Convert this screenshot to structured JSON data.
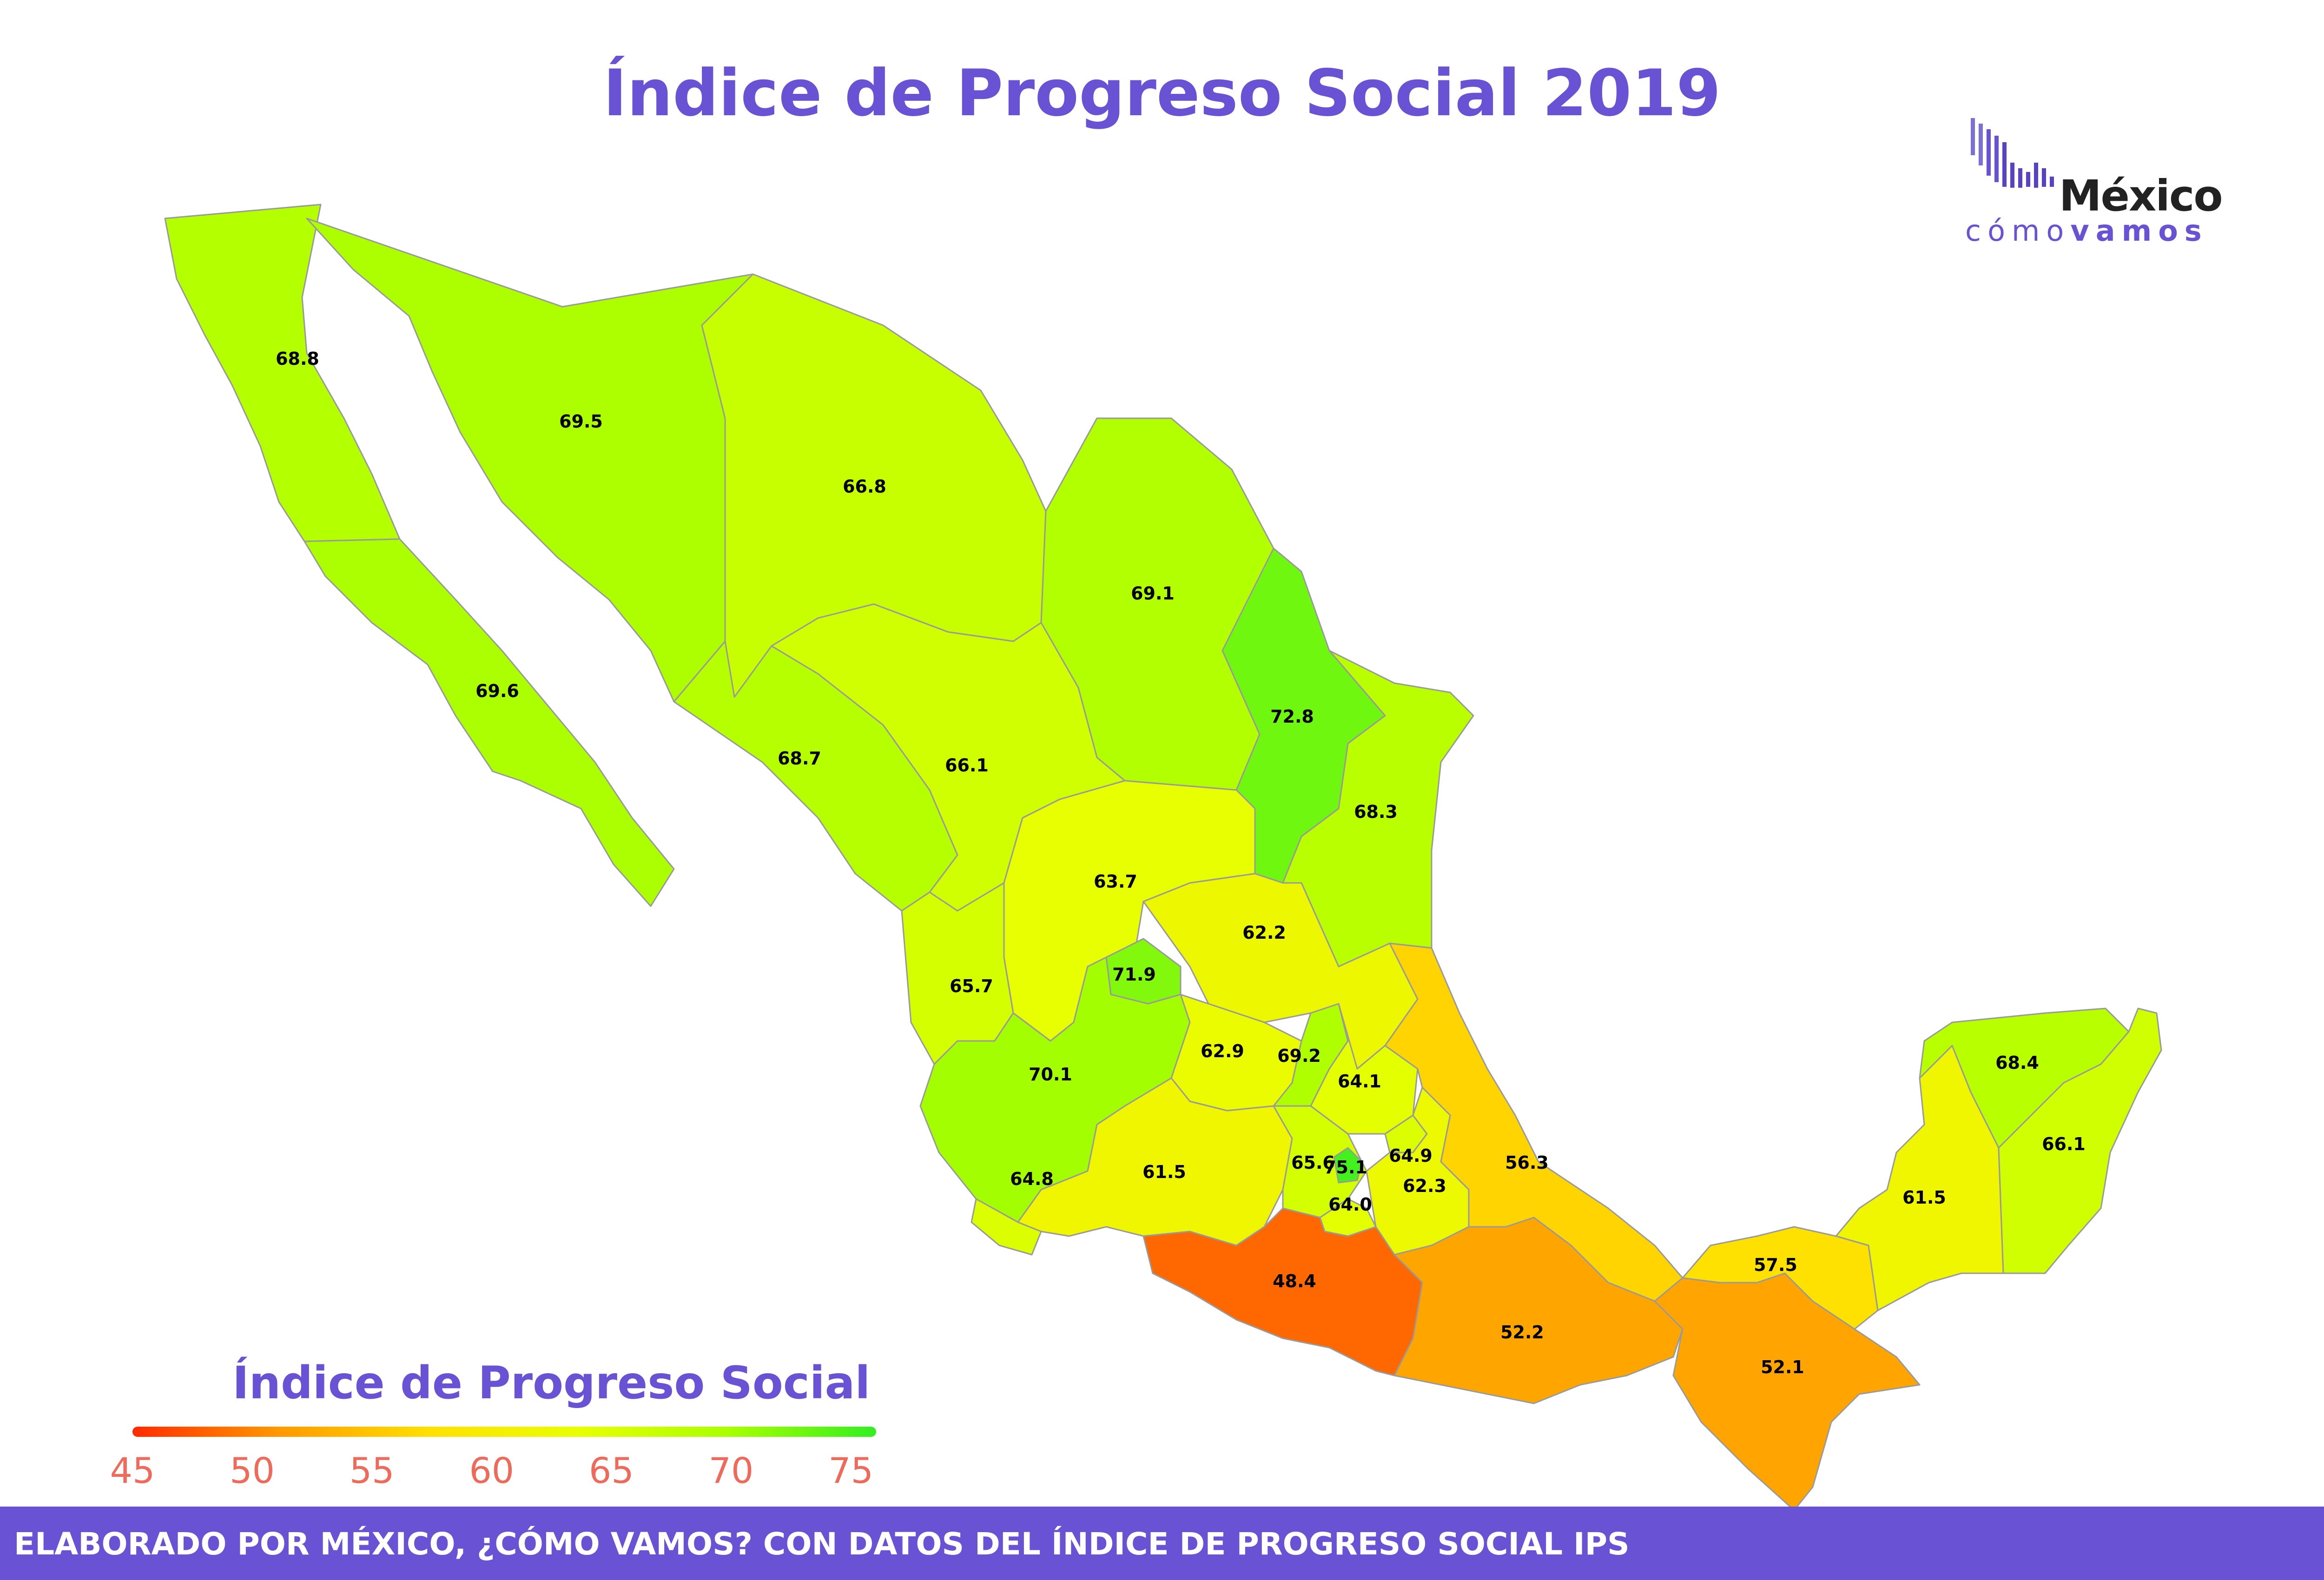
{
  "title": "Índice de Progreso Social 2019",
  "logo": {
    "word1": "México",
    "word2_light": "cómo",
    "word2_bold": "vamos"
  },
  "legend": {
    "title": "Índice de Progreso Social",
    "ticks": [
      "45",
      "50",
      "55",
      "60",
      "65",
      "70",
      "75"
    ],
    "min": 45,
    "max": 76,
    "colors": [
      "#ff2a00",
      "#ff9a00",
      "#ffe000",
      "#e8ff00",
      "#aaff00",
      "#33ee22"
    ]
  },
  "footer": "ELABORADO POR MÉXICO, ¿CÓMO VAMOS? CON DATOS DEL ÍNDICE DE PROGRESO SOCIAL IPS",
  "states": [
    {
      "id": "baja-california",
      "value": "68.8"
    },
    {
      "id": "sonora",
      "value": "69.5"
    },
    {
      "id": "chihuahua",
      "value": "66.8"
    },
    {
      "id": "coahuila",
      "value": "69.1"
    },
    {
      "id": "baja-california-sur",
      "value": "69.6"
    },
    {
      "id": "nuevo-leon",
      "value": "72.8"
    },
    {
      "id": "sinaloa",
      "value": "68.7"
    },
    {
      "id": "durango",
      "value": "66.1"
    },
    {
      "id": "tamaulipas",
      "value": "68.3"
    },
    {
      "id": "zacatecas",
      "value": "63.7"
    },
    {
      "id": "san-luis-potosi",
      "value": "62.2"
    },
    {
      "id": "aguascalientes",
      "value": "71.9"
    },
    {
      "id": "nayarit",
      "value": "65.7"
    },
    {
      "id": "jalisco",
      "value": "70.1"
    },
    {
      "id": "guanajuato",
      "value": "62.9"
    },
    {
      "id": "queretaro",
      "value": "69.2"
    },
    {
      "id": "hidalgo",
      "value": "64.1"
    },
    {
      "id": "veracruz",
      "value": "56.3"
    },
    {
      "id": "colima",
      "value": "64.8"
    },
    {
      "id": "michoacan",
      "value": "61.5"
    },
    {
      "id": "mexico",
      "value": "65.6"
    },
    {
      "id": "cdmx",
      "value": "75.1"
    },
    {
      "id": "tlaxcala",
      "value": "64.9"
    },
    {
      "id": "puebla",
      "value": "62.3"
    },
    {
      "id": "morelos",
      "value": "64.0"
    },
    {
      "id": "guerrero",
      "value": "48.4"
    },
    {
      "id": "oaxaca",
      "value": "52.2"
    },
    {
      "id": "chiapas",
      "value": "52.1"
    },
    {
      "id": "tabasco",
      "value": "57.5"
    },
    {
      "id": "campeche",
      "value": "61.5"
    },
    {
      "id": "yucatan",
      "value": "68.4"
    },
    {
      "id": "quintana-roo",
      "value": "66.1"
    }
  ]
}
